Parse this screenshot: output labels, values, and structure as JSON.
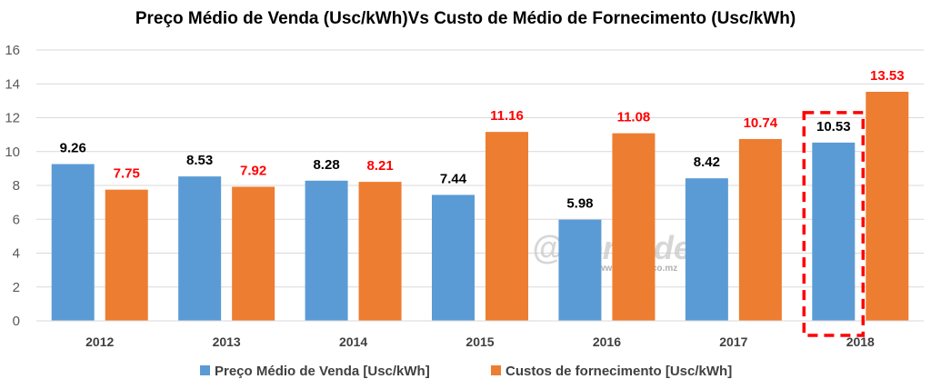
{
  "chart_data": {
    "type": "bar",
    "title": "Preço Médio de Venda (Usc/kWh)Vs Custo de Médio de Fornecimento (Usc/kWh)",
    "categories": [
      "2012",
      "2013",
      "2014",
      "2015",
      "2016",
      "2017",
      "2018"
    ],
    "series": [
      {
        "name": "Preço Médio de Venda [Usc/kWh]",
        "color": "#5b9bd5",
        "label_color": "#000000",
        "values": [
          9.26,
          8.53,
          8.28,
          7.44,
          5.98,
          8.42,
          10.53
        ]
      },
      {
        "name": "Custos de fornecimento [Usc/kWh]",
        "color": "#ed7d31",
        "label_color": "#ff0000",
        "values": [
          7.75,
          7.92,
          8.21,
          11.16,
          11.08,
          10.74,
          13.53
        ]
      }
    ],
    "ylim": [
      0,
      16
    ],
    "yticks": [
      0,
      2,
      4,
      6,
      8,
      10,
      12,
      14,
      16
    ],
    "xlabel": "",
    "ylabel": "",
    "grid": true,
    "legend": "bottom",
    "highlight": {
      "category": "2018",
      "series": 0,
      "color": "#ff0000",
      "style": "dashed"
    },
    "watermark": {
      "main": "@Verdade",
      "sub": "www.verdade.co.mz"
    }
  }
}
